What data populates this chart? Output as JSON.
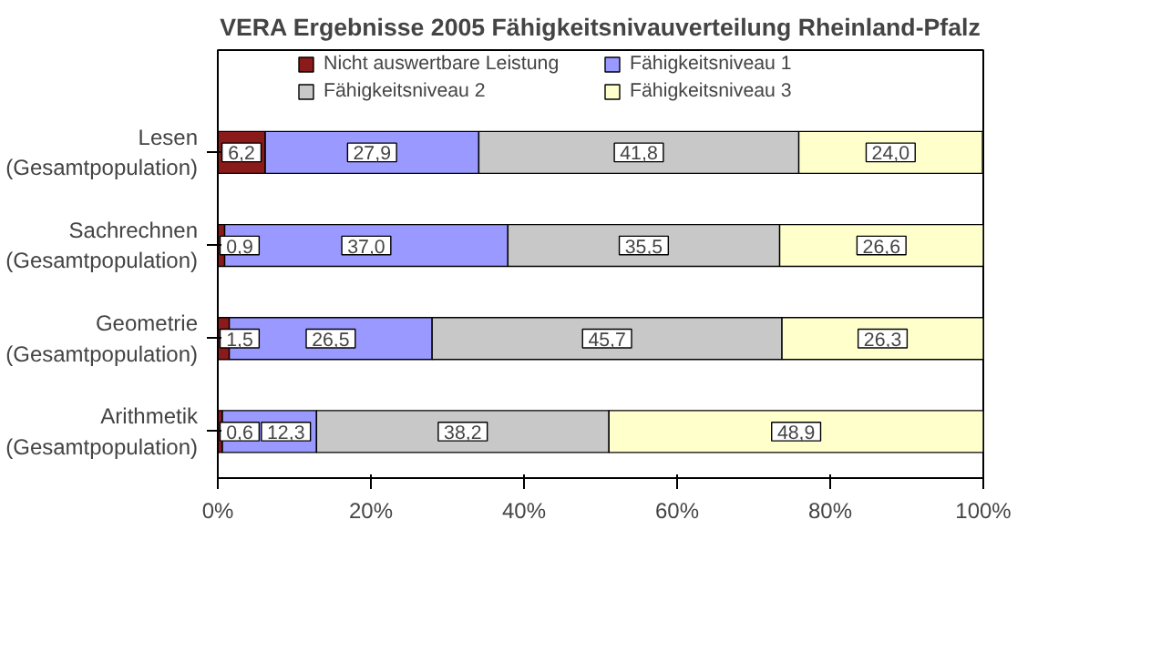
{
  "chart_data": {
    "type": "bar",
    "orientation": "horizontal",
    "stacked": true,
    "title": "VERA Ergebnisse 2005 Fähigkeitsnivauverteilung Rheinland-Pfalz",
    "categories": [
      "Lesen\n(Gesamtpopulation)",
      "Sachrechnen\n(Gesamtpopulation)",
      "Geometrie\n(Gesamtpopulation)",
      "Arithmetik\n(Gesamtpopulation)"
    ],
    "series": [
      {
        "name": "Nicht auswertbare Leistung",
        "color": "#8b1a1a",
        "values": [
          6.2,
          0.9,
          1.5,
          0.6
        ],
        "value_labels": [
          "6,2",
          "0,9",
          "1,5",
          "0,6"
        ]
      },
      {
        "name": "Fähigkeitsniveau 1",
        "color": "#9999ff",
        "values": [
          27.9,
          37.0,
          26.5,
          12.3
        ],
        "value_labels": [
          "27,9",
          "37,0",
          "26,5",
          "12,3"
        ]
      },
      {
        "name": "Fähigkeitsniveau 2",
        "color": "#c8c8c8",
        "values": [
          41.8,
          35.5,
          45.7,
          38.2
        ],
        "value_labels": [
          "41,8",
          "35,5",
          "45,7",
          "38,2"
        ]
      },
      {
        "name": "Fähigkeitsniveau 3",
        "color": "#ffffcc",
        "values": [
          24.0,
          26.6,
          26.3,
          48.9
        ],
        "value_labels": [
          "24,0",
          "26,6",
          "26,3",
          "48,9"
        ]
      }
    ],
    "xlim": [
      0,
      100
    ],
    "xticks": [
      {
        "value": 0,
        "label": "0%"
      },
      {
        "value": 20,
        "label": "20%"
      },
      {
        "value": 40,
        "label": "40%"
      },
      {
        "value": 60,
        "label": "60%"
      },
      {
        "value": 80,
        "label": "80%"
      },
      {
        "value": 100,
        "label": "100%"
      }
    ],
    "grid": false,
    "legend": "top"
  }
}
